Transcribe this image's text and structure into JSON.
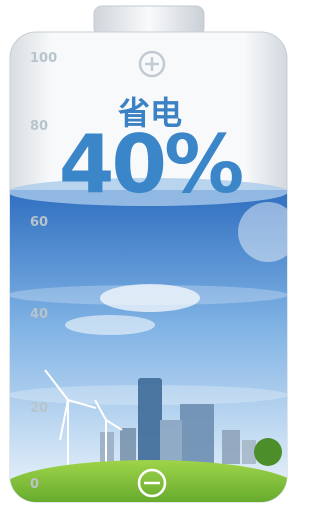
{
  "header": {
    "label": "省电",
    "value": "40%"
  },
  "scale": [
    "100",
    "80",
    "60",
    "40",
    "20",
    "0"
  ]
}
